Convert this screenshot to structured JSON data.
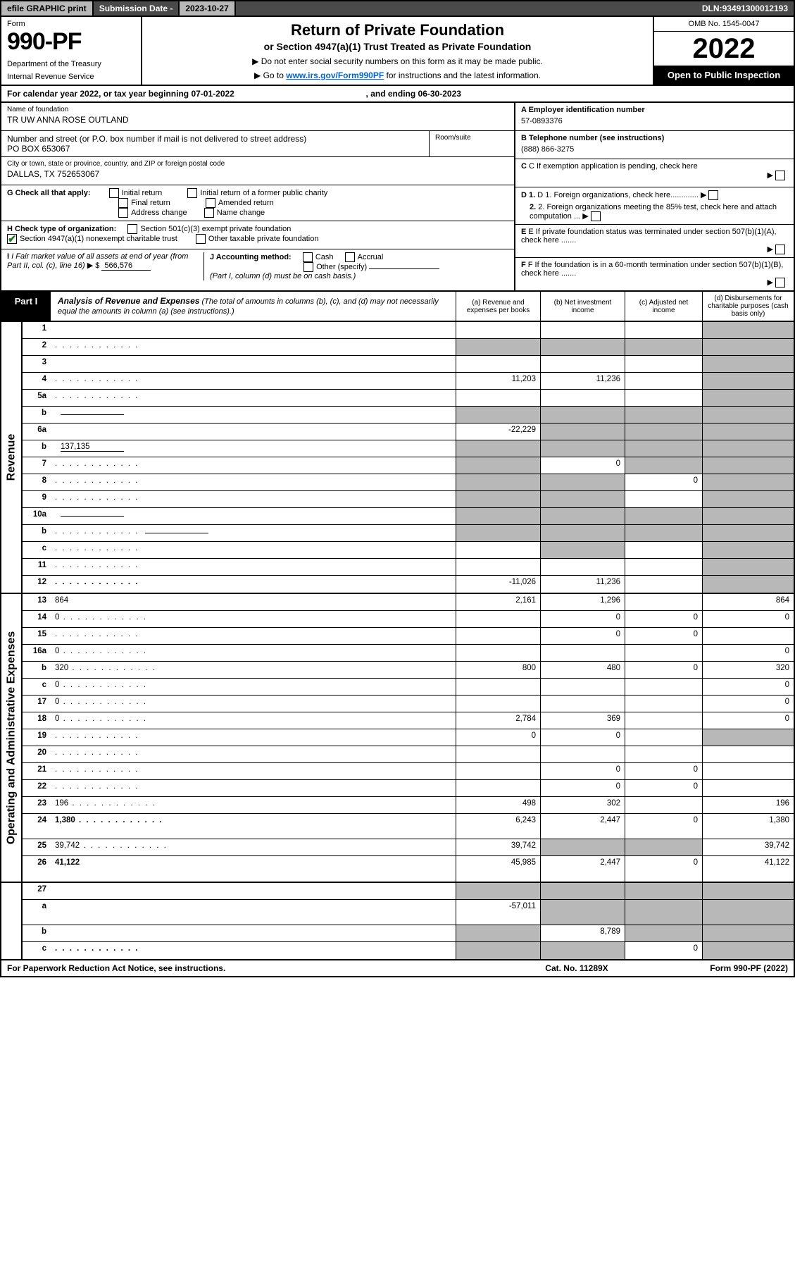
{
  "topbar": {
    "efile": "efile GRAPHIC print",
    "sub_label": "Submission Date - ",
    "sub_date": "2023-10-27",
    "dln_label": "DLN: ",
    "dln": "93491300012193"
  },
  "header": {
    "form_label": "Form",
    "form_number": "990-PF",
    "dept1": "Department of the Treasury",
    "dept2": "Internal Revenue Service",
    "title": "Return of Private Foundation",
    "subtitle": "or Section 4947(a)(1) Trust Treated as Private Foundation",
    "instr1_pre": "▶ Do not enter social security numbers on this form as it may be made public.",
    "instr2_pre": "▶ Go to ",
    "instr2_link": "www.irs.gov/Form990PF",
    "instr2_post": " for instructions and the latest information.",
    "omb": "OMB No. 1545-0047",
    "year": "2022",
    "open": "Open to Public Inspection"
  },
  "cal_year": {
    "pre": "For calendar year 2022, or tax year beginning ",
    "begin": "07-01-2022",
    "mid": " , and ending ",
    "end": "06-30-2023"
  },
  "name_block": {
    "lbl": "Name of foundation",
    "val": "TR UW ANNA ROSE OUTLAND"
  },
  "addr_block": {
    "lbl": "Number and street (or P.O. box number if mail is not delivered to street address)",
    "val": "PO BOX 653067",
    "room_lbl": "Room/suite"
  },
  "city_block": {
    "lbl": "City or town, state or province, country, and ZIP or foreign postal code",
    "val": "DALLAS, TX  752653067"
  },
  "right_info": {
    "a_lbl": "A Employer identification number",
    "a_val": "57-0893376",
    "b_lbl": "B Telephone number (see instructions)",
    "b_val": "(888) 866-3275",
    "c_lbl": "C If exemption application is pending, check here",
    "d1": "D 1. Foreign organizations, check here.............",
    "d2": "2. Foreign organizations meeting the 85% test, check here and attach computation ...",
    "e_lbl": "E  If private foundation status was terminated under section 507(b)(1)(A), check here .......",
    "f_lbl": "F  If the foundation is in a 60-month termination under section 507(b)(1)(B), check here ......."
  },
  "g_check": {
    "lead": "G Check all that apply:",
    "initial": "Initial return",
    "initial_former": "Initial return of a former public charity",
    "final": "Final return",
    "amended": "Amended return",
    "addr_change": "Address change",
    "name_change": "Name change"
  },
  "h_check": {
    "lead": "H Check type of organization:",
    "c3": "Section 501(c)(3) exempt private foundation",
    "s4947": "Section 4947(a)(1) nonexempt charitable trust",
    "other_tax": "Other taxable private foundation"
  },
  "i_block": {
    "lead": "I Fair market value of all assets at end of year (from Part II, col. (c), line 16) ",
    "arrow": "▶ $",
    "val": "566,576"
  },
  "j_block": {
    "lead": "J Accounting method:",
    "cash": "Cash",
    "accrual": "Accrual",
    "other": "Other (specify)",
    "note": "(Part I, column (d) must be on cash basis.)"
  },
  "part1": {
    "tab": "Part I",
    "title": "Analysis of Revenue and Expenses",
    "sub": " (The total of amounts in columns (b), (c), and (d) may not necessarily equal the amounts in column (a) (see instructions).)",
    "cols": {
      "a": "(a) Revenue and expenses per books",
      "b": "(b) Net investment income",
      "c": "(c) Adjusted net income",
      "d": "(d) Disbursements for charitable purposes (cash basis only)"
    }
  },
  "side_labels": {
    "revenue": "Revenue",
    "opex": "Operating and Administrative Expenses"
  },
  "rows": {
    "r1": {
      "n": "1",
      "d": "",
      "a": "",
      "b": "",
      "c": "",
      "gray": [
        "d"
      ]
    },
    "r2": {
      "n": "2",
      "d": "",
      "dots": true,
      "a": "",
      "b": "",
      "c": "",
      "gray": [
        "a",
        "b",
        "c",
        "d"
      ],
      "checked": true,
      "bold_not": true
    },
    "r3": {
      "n": "3",
      "d": "",
      "a": "",
      "b": "",
      "c": "",
      "gray": [
        "d"
      ]
    },
    "r4": {
      "n": "4",
      "d": "",
      "dots": true,
      "a": "11,203",
      "b": "11,236",
      "c": "",
      "gray": [
        "d"
      ]
    },
    "r5a": {
      "n": "5a",
      "d": "",
      "dots": true,
      "a": "",
      "b": "",
      "c": "",
      "gray": [
        "d"
      ]
    },
    "r5b": {
      "n": "b",
      "d": "",
      "under": true,
      "a": "",
      "b": "",
      "c": "",
      "gray": [
        "a",
        "b",
        "c",
        "d"
      ]
    },
    "r6a": {
      "n": "6a",
      "d": "",
      "a": "-22,229",
      "b": "",
      "c": "",
      "gray": [
        "b",
        "c",
        "d"
      ]
    },
    "r6b": {
      "n": "b",
      "d": "",
      "under": true,
      "under_val": "137,135",
      "a": "",
      "b": "",
      "c": "",
      "gray": [
        "a",
        "b",
        "c",
        "d"
      ]
    },
    "r7": {
      "n": "7",
      "d": "",
      "dots": true,
      "a": "",
      "b": "0",
      "c": "",
      "gray": [
        "a",
        "c",
        "d"
      ]
    },
    "r8": {
      "n": "8",
      "d": "",
      "dots": true,
      "a": "",
      "b": "",
      "c": "0",
      "gray": [
        "a",
        "b",
        "d"
      ]
    },
    "r9": {
      "n": "9",
      "d": "",
      "dots": true,
      "a": "",
      "b": "",
      "c": "",
      "gray": [
        "a",
        "b",
        "d"
      ]
    },
    "r10a": {
      "n": "10a",
      "d": "",
      "under": true,
      "a": "",
      "b": "",
      "c": "",
      "gray": [
        "a",
        "b",
        "c",
        "d"
      ]
    },
    "r10b": {
      "n": "b",
      "d": "",
      "dots": true,
      "under": true,
      "a": "",
      "b": "",
      "c": "",
      "gray": [
        "a",
        "b",
        "c",
        "d"
      ]
    },
    "r10c": {
      "n": "c",
      "d": "",
      "dots": true,
      "a": "",
      "b": "",
      "c": "",
      "gray": [
        "b",
        "d"
      ]
    },
    "r11": {
      "n": "11",
      "d": "",
      "dots": true,
      "a": "",
      "b": "",
      "c": "",
      "gray": [
        "d"
      ]
    },
    "r12": {
      "n": "12",
      "d": "",
      "dots": true,
      "bold": true,
      "a": "-11,026",
      "b": "11,236",
      "c": "",
      "gray": [
        "d"
      ]
    },
    "r13": {
      "n": "13",
      "d": "864",
      "a": "2,161",
      "b": "1,296",
      "c": ""
    },
    "r14": {
      "n": "14",
      "d": "0",
      "dots": true,
      "a": "",
      "b": "0",
      "c": "0"
    },
    "r15": {
      "n": "15",
      "d": "",
      "dots": true,
      "a": "",
      "b": "0",
      "c": "0"
    },
    "r16a": {
      "n": "16a",
      "d": "0",
      "dots": true,
      "a": "",
      "b": "",
      "c": ""
    },
    "r16b": {
      "n": "b",
      "d": "320",
      "dots": true,
      "a": "800",
      "b": "480",
      "c": "0"
    },
    "r16c": {
      "n": "c",
      "d": "0",
      "dots": true,
      "a": "",
      "b": "",
      "c": ""
    },
    "r17": {
      "n": "17",
      "d": "0",
      "dots": true,
      "a": "",
      "b": "",
      "c": ""
    },
    "r18": {
      "n": "18",
      "d": "0",
      "dots": true,
      "a": "2,784",
      "b": "369",
      "c": ""
    },
    "r19": {
      "n": "19",
      "d": "",
      "dots": true,
      "a": "0",
      "b": "0",
      "c": "",
      "gray": [
        "d"
      ]
    },
    "r20": {
      "n": "20",
      "d": "",
      "dots": true,
      "a": "",
      "b": "",
      "c": ""
    },
    "r21": {
      "n": "21",
      "d": "",
      "dots": true,
      "a": "",
      "b": "0",
      "c": "0"
    },
    "r22": {
      "n": "22",
      "d": "",
      "dots": true,
      "a": "",
      "b": "0",
      "c": "0"
    },
    "r23": {
      "n": "23",
      "d": "196",
      "dots": true,
      "a": "498",
      "b": "302",
      "c": ""
    },
    "r24": {
      "n": "24",
      "d": "1,380",
      "dots": true,
      "bold": true,
      "a": "6,243",
      "b": "2,447",
      "c": "0",
      "tall": true
    },
    "r25": {
      "n": "25",
      "d": "39,742",
      "dots": true,
      "a": "39,742",
      "b": "",
      "c": "",
      "gray": [
        "b",
        "c"
      ]
    },
    "r26": {
      "n": "26",
      "d": "41,122",
      "bold": true,
      "a": "45,985",
      "b": "2,447",
      "c": "0",
      "tall": true
    },
    "r27": {
      "n": "27",
      "d": "",
      "a": "",
      "b": "",
      "c": "",
      "gray": [
        "a",
        "b",
        "c",
        "d"
      ]
    },
    "r27a": {
      "n": "a",
      "d": "",
      "bold": true,
      "a": "-57,011",
      "b": "",
      "c": "",
      "gray": [
        "b",
        "c",
        "d"
      ],
      "tall": true
    },
    "r27b": {
      "n": "b",
      "d": "",
      "bold": true,
      "a": "",
      "b": "8,789",
      "c": "",
      "gray": [
        "a",
        "c",
        "d"
      ]
    },
    "r27c": {
      "n": "c",
      "d": "",
      "dots": true,
      "bold": true,
      "a": "",
      "b": "",
      "c": "0",
      "gray": [
        "a",
        "b",
        "d"
      ]
    }
  },
  "footer": {
    "left": "For Paperwork Reduction Act Notice, see instructions.",
    "mid": "Cat. No. 11289X",
    "right": "Form 990-PF (2022)"
  },
  "colors": {
    "gray_bg": "#b8b8b8",
    "dark_bg": "#4a4a4a",
    "link": "#0066cc",
    "check_green": "#1a7a1a"
  }
}
